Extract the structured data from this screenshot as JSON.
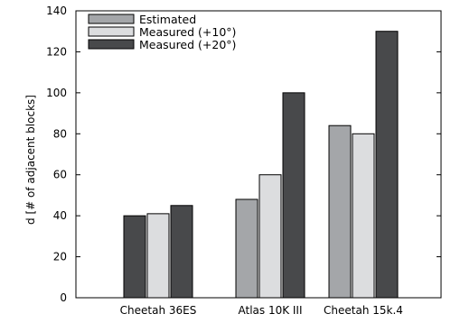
{
  "chart_data": {
    "type": "bar",
    "title": "",
    "xlabel": "",
    "ylabel": "d [# of adjacent blocks]",
    "ylim": [
      0,
      140
    ],
    "yticks": [
      0,
      20,
      40,
      60,
      80,
      100,
      120,
      140
    ],
    "grid": false,
    "legend_position": "top-left",
    "categories": [
      "Cheetah 36ES",
      "Atlas 10K III",
      "Cheetah 15k.4"
    ],
    "series": [
      {
        "name": "Estimated",
        "color": "#a4a6a9",
        "values": [
          null,
          48,
          84
        ]
      },
      {
        "name": "Measured (+10°)",
        "color": "#dcdddf",
        "values": [
          41,
          60,
          80
        ]
      },
      {
        "name": "Measured (+20°)",
        "color": "#48494b",
        "values": [
          45,
          100,
          130
        ]
      }
    ],
    "extra_bars": [
      {
        "category": "Cheetah 36ES",
        "slot": -1,
        "color": "#48494b",
        "value": 40
      }
    ]
  }
}
